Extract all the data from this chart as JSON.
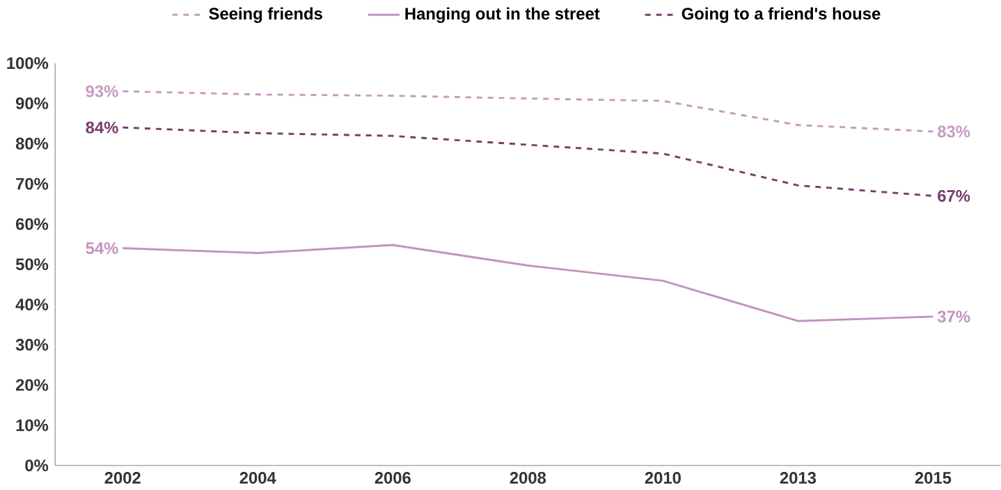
{
  "chart_data": {
    "type": "line",
    "categories": [
      "2002",
      "2004",
      "2006",
      "2008",
      "2010",
      "2013",
      "2015"
    ],
    "series": [
      {
        "name": "Seeing friends",
        "color": "#c79bc2",
        "line_style": "dashed",
        "values": [
          93,
          92.2,
          91.9,
          91.2,
          90.6,
          84.6,
          83
        ],
        "value_labels": [
          "93%",
          null,
          null,
          null,
          null,
          null,
          "83%"
        ]
      },
      {
        "name": "Hanging out in the street",
        "color": "#c393bd",
        "line_style": "solid",
        "values": [
          54,
          52.8,
          54.8,
          49.7,
          45.9,
          35.9,
          37
        ],
        "value_labels": [
          "54%",
          null,
          null,
          null,
          null,
          null,
          "37%"
        ]
      },
      {
        "name": "Going to a friend's house",
        "color": "#7a3d6c",
        "line_style": "dashed",
        "values": [
          84,
          82.6,
          81.9,
          79.7,
          77.5,
          69.6,
          67
        ],
        "value_labels": [
          "84%",
          null,
          null,
          null,
          null,
          null,
          "67%"
        ]
      }
    ],
    "ylim": [
      0,
      100
    ],
    "yticks": [
      {
        "value": 0,
        "label": "0%"
      },
      {
        "value": 10,
        "label": "10%"
      },
      {
        "value": 20,
        "label": "20%"
      },
      {
        "value": 30,
        "label": "30%"
      },
      {
        "value": 40,
        "label": "40%"
      },
      {
        "value": 50,
        "label": "50%"
      },
      {
        "value": 60,
        "label": "60%"
      },
      {
        "value": 70,
        "label": "70%"
      },
      {
        "value": 80,
        "label": "80%"
      },
      {
        "value": 90,
        "label": "90%"
      },
      {
        "value": 100,
        "label": "100%"
      }
    ],
    "legend": "top",
    "grid": false,
    "marker": "none"
  }
}
